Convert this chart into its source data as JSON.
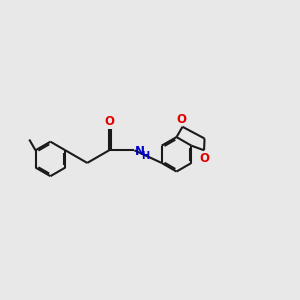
{
  "background_color": "#e8e8e8",
  "bond_color": "#1a1a1a",
  "oxygen_color": "#e00000",
  "nitrogen_color": "#0000cc",
  "lw": 1.5,
  "dbl_sep": 0.055,
  "figsize": [
    3.0,
    3.0
  ],
  "dpi": 100,
  "xlim": [
    0.5,
    10.5
  ],
  "ylim": [
    2.5,
    8.5
  ]
}
